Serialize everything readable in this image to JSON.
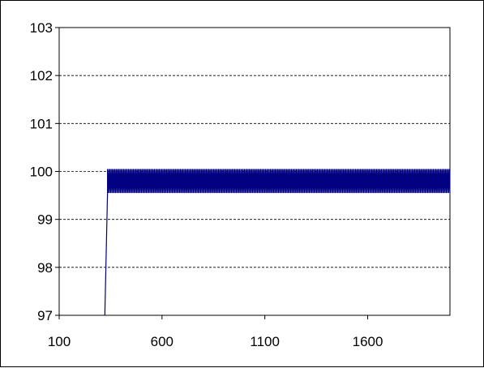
{
  "chart_data": {
    "type": "line",
    "title": "",
    "xlabel": "",
    "ylabel": "",
    "xlim": [
      100,
      2000
    ],
    "ylim": [
      97,
      103
    ],
    "x_ticks": [
      100,
      600,
      1100,
      1600
    ],
    "y_ticks": [
      97,
      98,
      99,
      100,
      101,
      102,
      103
    ],
    "x_tick_labels": [
      "100",
      "600",
      "1100",
      "1600"
    ],
    "y_tick_labels": [
      "97",
      "98",
      "99",
      "100",
      "101",
      "102",
      "103"
    ],
    "grid": "horizontal dashed",
    "legend": "none",
    "series": [
      {
        "color": "#000080",
        "description_points": [
          [
            322,
            97
          ],
          [
            335,
            99.55
          ]
        ],
        "oscillation": {
          "x_start": 335,
          "x_end": 2000,
          "min": 99.55,
          "max": 100.05,
          "period": 6
        }
      }
    ]
  }
}
